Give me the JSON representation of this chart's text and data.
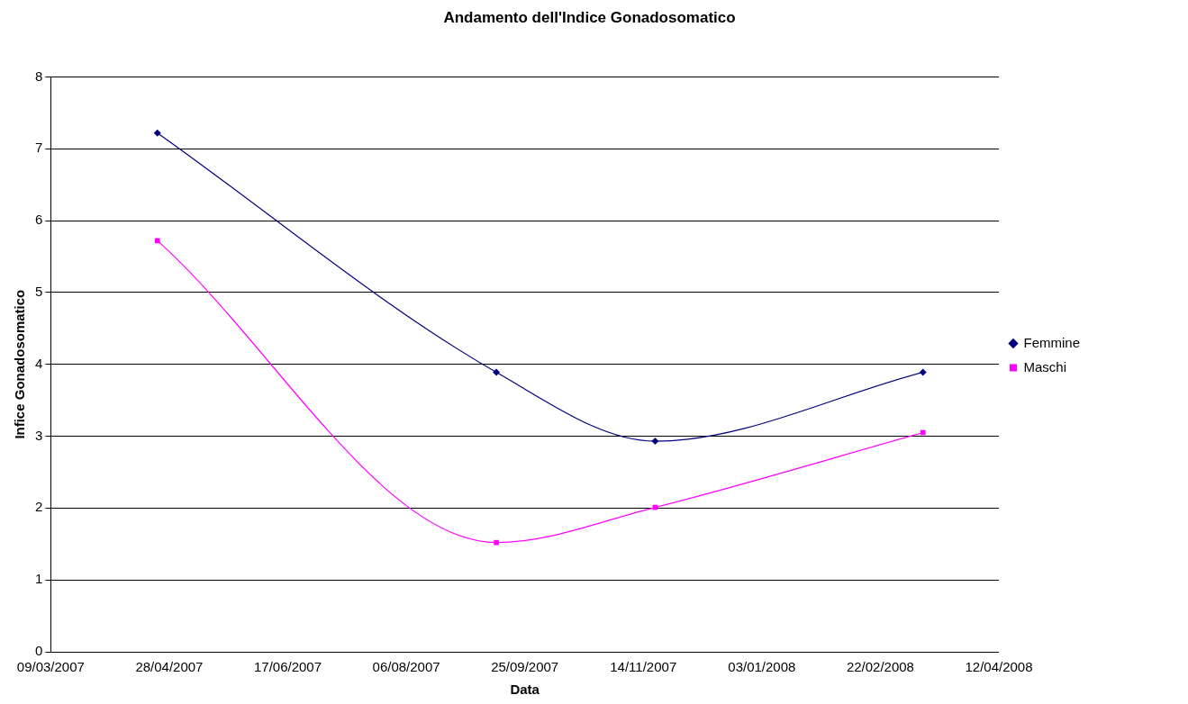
{
  "chart_data": {
    "type": "line",
    "title": "Andamento dell'Indice Gonadosomatico",
    "xlabel": "Data",
    "ylabel": "Infice Gonadosomatico",
    "x": [
      "2007-04-23",
      "2007-09-13",
      "2007-11-19",
      "2008-03-11"
    ],
    "series": [
      {
        "name": "Femmine",
        "color": "#000080",
        "marker": "diamond",
        "values": [
          7.22,
          3.89,
          2.93,
          3.89
        ]
      },
      {
        "name": "Maschi",
        "color": "#ff00ff",
        "marker": "square",
        "values": [
          5.72,
          1.52,
          2.01,
          3.05
        ]
      }
    ],
    "xlim": [
      "2007-03-09",
      "2008-04-12"
    ],
    "xticks": [
      {
        "value": "2007-03-09",
        "label": "09/03/2007"
      },
      {
        "value": "2007-04-28",
        "label": "28/04/2007"
      },
      {
        "value": "2007-06-17",
        "label": "17/06/2007"
      },
      {
        "value": "2007-08-06",
        "label": "06/08/2007"
      },
      {
        "value": "2007-09-25",
        "label": "25/09/2007"
      },
      {
        "value": "2007-11-14",
        "label": "14/11/2007"
      },
      {
        "value": "2008-01-03",
        "label": "03/01/2008"
      },
      {
        "value": "2008-02-22",
        "label": "22/02/2008"
      },
      {
        "value": "2008-04-12",
        "label": "12/04/2008"
      }
    ],
    "ylim": [
      0,
      8
    ],
    "yticks": [
      0,
      1,
      2,
      3,
      4,
      5,
      6,
      7,
      8
    ],
    "grid": "y",
    "legend": "right",
    "line_style": "solid"
  }
}
